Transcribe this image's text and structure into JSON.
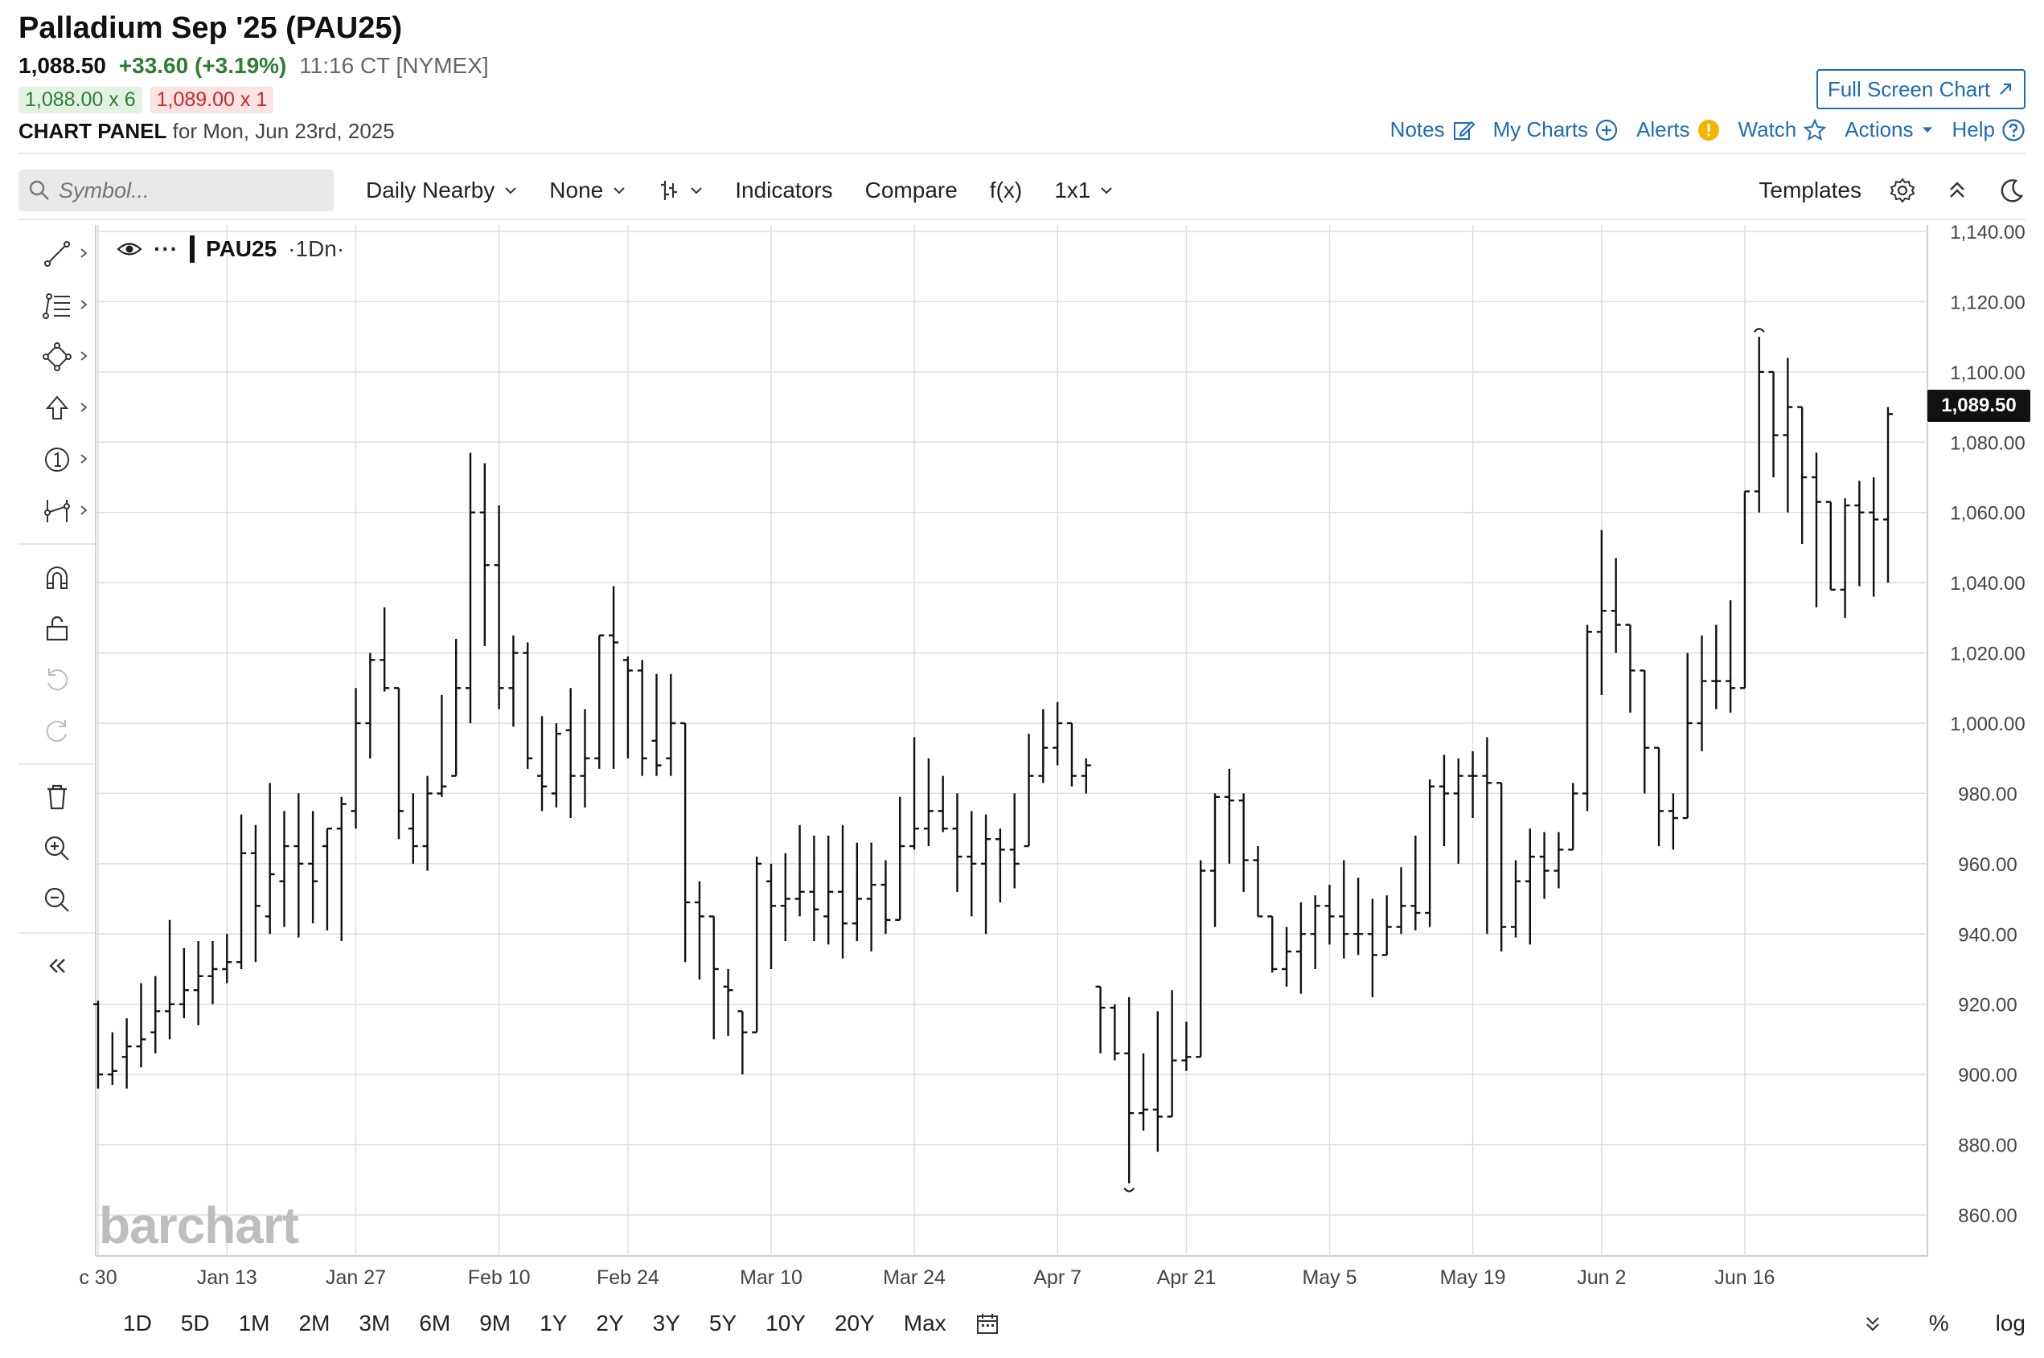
{
  "header": {
    "title": "Palladium Sep '25 (PAU25)",
    "last": "1,088.50",
    "change": "+33.60 (+3.19%)",
    "time": "11:16 CT [NYMEX]",
    "bid": "1,088.00 x 6",
    "ask": "1,089.00 x 1",
    "panel_label": "CHART PANEL",
    "panel_date": "for Mon, Jun 23rd, 2025",
    "full_screen": "Full Screen Chart"
  },
  "toplinks": {
    "notes": "Notes",
    "my_charts": "My Charts",
    "alerts": "Alerts",
    "watch": "Watch",
    "actions": "Actions",
    "help": "Help"
  },
  "toolbar": {
    "search_placeholder": "Symbol...",
    "interval": "Daily Nearby",
    "overlay": "None",
    "indicators": "Indicators",
    "compare": "Compare",
    "fx": "f(x)",
    "layout": "1x1",
    "templates": "Templates"
  },
  "legend": {
    "symbol": "PAU25",
    "period": "·1Dn·"
  },
  "logo": "barchart",
  "price_tag": "1,089.50",
  "range": {
    "items": [
      "1D",
      "5D",
      "1M",
      "2M",
      "3M",
      "6M",
      "9M",
      "1Y",
      "2Y",
      "3Y",
      "5Y",
      "10Y",
      "20Y",
      "Max"
    ],
    "pct": "%",
    "log": "log"
  },
  "colors": {
    "accent": "#1f6bb5",
    "up": "#2e7d32",
    "down": "#c62828",
    "bar": "#111111",
    "grid": "#dedede"
  },
  "chart_data": {
    "type": "ohlc",
    "symbol": "PAU25",
    "ylim": [
      850,
      1140
    ],
    "y_ticks": [
      860,
      880,
      900,
      920,
      940,
      960,
      980,
      1000,
      1020,
      1040,
      1060,
      1080,
      1100,
      1120,
      1140
    ],
    "y_tick_labels": [
      "860.00",
      "880.00",
      "900.00",
      "920.00",
      "940.00",
      "960.00",
      "980.00",
      "1,000.00",
      "1,020.00",
      "1,040.00",
      "1,060.00",
      "1,080.00",
      "1,100.00",
      "1,120.00",
      "1,140.00"
    ],
    "x_labels": [
      "c 30",
      "Jan 13",
      "Jan 27",
      "Feb 10",
      "Feb 24",
      "Mar 10",
      "Mar 24",
      "Apr 7",
      "Apr 21",
      "May 5",
      "May 19",
      "Jun 2",
      "Jun 16"
    ],
    "x_label_index": [
      0,
      9,
      18,
      28,
      37,
      47,
      57,
      67,
      76,
      86,
      96,
      105,
      115
    ],
    "bars": [
      [
        920,
        921,
        896,
        900
      ],
      [
        900,
        912,
        897,
        901
      ],
      [
        905,
        916,
        896,
        908
      ],
      [
        908,
        926,
        902,
        910
      ],
      [
        912,
        928,
        906,
        918
      ],
      [
        918,
        944,
        910,
        920
      ],
      [
        920,
        936,
        916,
        924
      ],
      [
        924,
        938,
        914,
        928
      ],
      [
        928,
        938,
        920,
        930
      ],
      [
        930,
        940,
        926,
        932
      ],
      [
        932,
        974,
        930,
        963
      ],
      [
        963,
        971,
        932,
        948
      ],
      [
        945,
        983,
        940,
        957
      ],
      [
        955,
        975,
        942,
        965
      ],
      [
        965,
        980,
        939,
        960
      ],
      [
        960,
        975,
        943,
        955
      ],
      [
        965,
        970,
        941,
        970
      ],
      [
        970,
        979,
        938,
        977
      ],
      [
        975,
        1010,
        970,
        1000
      ],
      [
        1000,
        1020,
        990,
        1018
      ],
      [
        1018,
        1033,
        1009,
        1010
      ],
      [
        1010,
        1008,
        967,
        975
      ],
      [
        970,
        980,
        960,
        965
      ],
      [
        965,
        985,
        958,
        980
      ],
      [
        980,
        1008,
        979,
        982
      ],
      [
        985,
        1024,
        990,
        1010
      ],
      [
        1010,
        1077,
        1000,
        1060
      ],
      [
        1060,
        1074,
        1022,
        1045
      ],
      [
        1045,
        1062,
        1004,
        1010
      ],
      [
        1010,
        1025,
        999,
        1020
      ],
      [
        1020,
        1023,
        987,
        990
      ],
      [
        985,
        1002,
        975,
        982
      ],
      [
        980,
        1000,
        976,
        997
      ],
      [
        998,
        1010,
        973,
        985
      ],
      [
        985,
        1004,
        976,
        990
      ],
      [
        990,
        1017,
        987,
        1025
      ],
      [
        1025,
        1039,
        987,
        1023
      ],
      [
        1018,
        1019,
        990,
        1015
      ],
      [
        1015,
        1018,
        985,
        990
      ],
      [
        995,
        1014,
        985,
        988
      ],
      [
        990,
        1014,
        985,
        1000
      ],
      [
        1000,
        996,
        932,
        949
      ],
      [
        949,
        955,
        927,
        945
      ],
      [
        945,
        938,
        910,
        930
      ],
      [
        925,
        930,
        911,
        924
      ],
      [
        918,
        914,
        900,
        912
      ],
      [
        912,
        962,
        916,
        960
      ],
      [
        955,
        960,
        930,
        948
      ],
      [
        948,
        963,
        938,
        950
      ],
      [
        950,
        971,
        945,
        952
      ],
      [
        952,
        968,
        938,
        947
      ],
      [
        945,
        968,
        937,
        952
      ],
      [
        952,
        971,
        933,
        943
      ],
      [
        943,
        966,
        938,
        950
      ],
      [
        950,
        966,
        935,
        954
      ],
      [
        954,
        961,
        940,
        944
      ],
      [
        944,
        979,
        950,
        965
      ],
      [
        965,
        996,
        964,
        970
      ],
      [
        970,
        990,
        965,
        975
      ],
      [
        975,
        985,
        969,
        970
      ],
      [
        970,
        980,
        952,
        962
      ],
      [
        962,
        975,
        945,
        960
      ],
      [
        960,
        974,
        940,
        967
      ],
      [
        967,
        970,
        949,
        964
      ],
      [
        964,
        980,
        953,
        960
      ],
      [
        965,
        997,
        970,
        985
      ],
      [
        985,
        1004,
        983,
        993
      ],
      [
        993,
        1006,
        988,
        1000
      ],
      [
        1000,
        997,
        982,
        985
      ],
      [
        985,
        990,
        980,
        988
      ],
      [
        925,
        921,
        906,
        919
      ],
      [
        919,
        920,
        904,
        906
      ],
      [
        906,
        922,
        869,
        889
      ],
      [
        889,
        906,
        884,
        890
      ],
      [
        890,
        918,
        878,
        888
      ],
      [
        888,
        924,
        889,
        904
      ],
      [
        904,
        915,
        901,
        905
      ],
      [
        905,
        961,
        943,
        958
      ],
      [
        958,
        980,
        942,
        979
      ],
      [
        979,
        987,
        960,
        978
      ],
      [
        978,
        980,
        952,
        961
      ],
      [
        961,
        965,
        946,
        945
      ],
      [
        945,
        942,
        929,
        930
      ],
      [
        930,
        942,
        925,
        935
      ],
      [
        935,
        949,
        923,
        940
      ],
      [
        940,
        951,
        930,
        948
      ],
      [
        948,
        954,
        937,
        945
      ],
      [
        945,
        961,
        933,
        940
      ],
      [
        940,
        956,
        934,
        940
      ],
      [
        940,
        950,
        922,
        934
      ],
      [
        934,
        951,
        935,
        942
      ],
      [
        942,
        959,
        940,
        948
      ],
      [
        948,
        968,
        941,
        946
      ],
      [
        946,
        984,
        942,
        982
      ],
      [
        982,
        991,
        965,
        980
      ],
      [
        980,
        990,
        960,
        985
      ],
      [
        985,
        992,
        973,
        985
      ],
      [
        985,
        996,
        940,
        983
      ],
      [
        983,
        980,
        935,
        942
      ],
      [
        942,
        961,
        939,
        955
      ],
      [
        955,
        970,
        937,
        962
      ],
      [
        962,
        969,
        950,
        958
      ],
      [
        958,
        969,
        953,
        964
      ],
      [
        964,
        983,
        975,
        980
      ],
      [
        980,
        1028,
        975,
        1026
      ],
      [
        1026,
        1055,
        1008,
        1032
      ],
      [
        1032,
        1047,
        1020,
        1028
      ],
      [
        1028,
        1023,
        1003,
        1015
      ],
      [
        1015,
        1008,
        980,
        993
      ],
      [
        993,
        985,
        965,
        975
      ],
      [
        975,
        980,
        964,
        973
      ],
      [
        973,
        1020,
        975,
        1000
      ],
      [
        1000,
        1025,
        992,
        1012
      ],
      [
        1012,
        1028,
        1004,
        1012
      ],
      [
        1012,
        1035,
        1003,
        1010
      ],
      [
        1010,
        1065,
        1060,
        1066
      ],
      [
        1066,
        1110,
        1060,
        1100
      ],
      [
        1100,
        1096,
        1070,
        1082
      ],
      [
        1082,
        1104,
        1060,
        1090
      ],
      [
        1090,
        1085,
        1051,
        1070
      ],
      [
        1070,
        1077,
        1033,
        1063
      ],
      [
        1063,
        1063,
        1040,
        1038
      ],
      [
        1038,
        1064,
        1030,
        1062
      ],
      [
        1062,
        1069,
        1039,
        1060
      ],
      [
        1060,
        1070,
        1036,
        1058
      ],
      [
        1058,
        1090,
        1040,
        1088
      ]
    ]
  }
}
